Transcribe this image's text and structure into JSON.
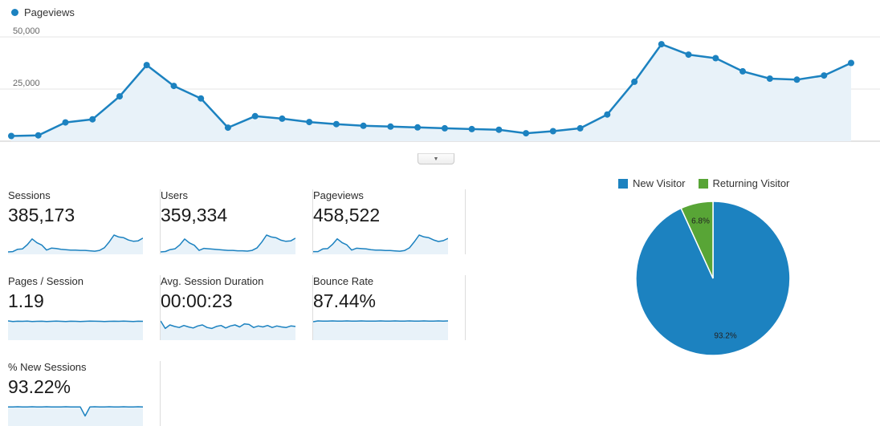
{
  "colors": {
    "blue": "#1c82c0",
    "green": "#58a536",
    "area": "#e8f2f9",
    "grid": "#e6e6e6",
    "axis": "#c9c9c9"
  },
  "chart_data": {
    "timeline": {
      "type": "line",
      "legend_label": "Pageviews",
      "ylim": [
        0,
        50000
      ],
      "y_ticks": [
        {
          "label": "50,000",
          "value": 50000
        },
        {
          "label": "25,000",
          "value": 25000
        }
      ],
      "values": [
        2500,
        2800,
        9000,
        10500,
        21500,
        36500,
        26500,
        20500,
        6500,
        12000,
        10800,
        9200,
        8200,
        7400,
        7000,
        6600,
        6200,
        5800,
        5500,
        3800,
        4800,
        6200,
        12800,
        28500,
        46500,
        41500,
        39800,
        33500,
        30000,
        29500,
        31500,
        37500
      ]
    },
    "metrics": [
      {
        "label": "Sessions",
        "value": "385,173",
        "spark": [
          2,
          3,
          9,
          10,
          21,
          36,
          26,
          20,
          7,
          12,
          11,
          9,
          8,
          7,
          7,
          6,
          6,
          5,
          4,
          6,
          13,
          28,
          46,
          41,
          39,
          33,
          30,
          31,
          38
        ]
      },
      {
        "label": "Users",
        "value": "359,334",
        "spark": [
          2,
          3,
          8,
          10,
          20,
          35,
          25,
          19,
          6,
          11,
          10,
          9,
          8,
          7,
          6,
          6,
          5,
          5,
          4,
          6,
          12,
          27,
          45,
          40,
          38,
          32,
          29,
          30,
          37
        ]
      },
      {
        "label": "Pageviews",
        "value": "458,522",
        "spark": [
          3,
          3,
          10,
          11,
          22,
          37,
          27,
          21,
          7,
          12,
          11,
          10,
          8,
          7,
          7,
          6,
          6,
          5,
          4,
          6,
          13,
          29,
          47,
          42,
          40,
          34,
          30,
          32,
          38
        ]
      },
      {
        "label": "Pages / Session",
        "value": "1.19",
        "spark": [
          1.22,
          1.18,
          1.2,
          1.19,
          1.21,
          1.18,
          1.19,
          1.2,
          1.18,
          1.19,
          1.21,
          1.19,
          1.18,
          1.2,
          1.19,
          1.18,
          1.19,
          1.21,
          1.2,
          1.19,
          1.18,
          1.19,
          1.2,
          1.19,
          1.21,
          1.19,
          1.18,
          1.2,
          1.19
        ]
      },
      {
        "label": "Avg. Session Duration",
        "value": "00:00:23",
        "spark": [
          35,
          20,
          27,
          24,
          22,
          26,
          23,
          21,
          25,
          27,
          22,
          20,
          24,
          26,
          21,
          25,
          27,
          23,
          29,
          28,
          22,
          25,
          23,
          26,
          22,
          25,
          23,
          22,
          25,
          24
        ]
      },
      {
        "label": "Bounce Rate",
        "value": "87.44%",
        "spark": [
          84,
          88,
          87,
          87,
          88,
          87,
          87,
          88,
          87,
          87,
          88,
          87,
          87,
          87,
          88,
          87,
          87,
          88,
          87,
          87,
          88,
          87,
          87,
          88,
          87,
          87,
          88,
          87,
          88
        ]
      },
      {
        "label": "% New Sessions",
        "value": "93.22%",
        "spark": [
          93,
          93,
          94,
          93,
          93,
          94,
          93,
          93,
          94,
          93,
          93,
          93,
          94,
          93,
          93,
          93,
          45,
          93,
          94,
          93,
          93,
          94,
          93,
          93,
          94,
          93,
          93,
          94,
          93
        ]
      }
    ],
    "pie": {
      "type": "pie",
      "legend": [
        {
          "label": "New Visitor",
          "color": "#1c82c0"
        },
        {
          "label": "Returning Visitor",
          "color": "#58a536"
        }
      ],
      "slices": [
        {
          "name": "New Visitor",
          "value": 93.2,
          "label": "93.2%",
          "color": "#1c82c0"
        },
        {
          "name": "Returning Visitor",
          "value": 6.8,
          "label": "6.8%",
          "color": "#58a536"
        }
      ]
    }
  }
}
